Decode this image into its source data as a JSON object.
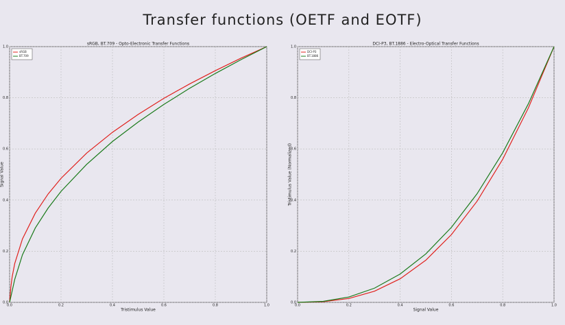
{
  "title": "Transfer functions (OETF and EOTF)",
  "chart_data": [
    {
      "type": "line",
      "title": "sRGB, BT.709 - Opto-Electronic Transfer Functions",
      "x_label": "Tristimulus Value",
      "y_label": "Signal Value",
      "x": [
        0,
        0.005,
        0.01,
        0.02,
        0.05,
        0.1,
        0.15,
        0.2,
        0.3,
        0.4,
        0.5,
        0.6,
        0.7,
        0.8,
        0.9,
        1.0
      ],
      "series": [
        {
          "name": "sRGB",
          "color": "#e0201c",
          "values": [
            0,
            0.061,
            0.1,
            0.152,
            0.248,
            0.349,
            0.424,
            0.485,
            0.584,
            0.665,
            0.735,
            0.798,
            0.854,
            0.906,
            0.955,
            1.0
          ]
        },
        {
          "name": "BT.709",
          "color": "#1a7a1a",
          "values": [
            0,
            0.0225,
            0.045,
            0.09,
            0.186,
            0.291,
            0.369,
            0.434,
            0.54,
            0.629,
            0.705,
            0.774,
            0.837,
            0.895,
            0.949,
            1.0
          ]
        }
      ],
      "xlim": [
        0,
        1
      ],
      "ylim": [
        0,
        1
      ],
      "xticks": [
        {
          "value": 0,
          "label": "0.0"
        },
        0.2,
        0.4,
        0.6,
        0.8,
        {
          "value": 1,
          "label": "1.0"
        }
      ],
      "yticks": [
        {
          "value": 0,
          "label": "0.0"
        },
        0.2,
        0.4,
        0.6,
        0.8,
        {
          "value": 1,
          "label": "1.0"
        }
      ],
      "grid": true,
      "legend": "upper left"
    },
    {
      "type": "line",
      "title": "DCI-P3, BT.1886 - Electro-Optical Transfer Functions",
      "x_label": "Signal Value",
      "y_label": "Tristimulus Value (Normalized)",
      "x": [
        0,
        0.1,
        0.2,
        0.3,
        0.4,
        0.5,
        0.6,
        0.7,
        0.8,
        0.9,
        1.0
      ],
      "series": [
        {
          "name": "DCI-P3",
          "color": "#e0201c",
          "values": [
            0,
            0.0025,
            0.0152,
            0.0437,
            0.0923,
            0.1649,
            0.265,
            0.3956,
            0.5598,
            0.7604,
            1.0
          ]
        },
        {
          "name": "BT.1886",
          "color": "#1a7a1a",
          "values": [
            0,
            0.004,
            0.021,
            0.0556,
            0.1109,
            0.1895,
            0.2935,
            0.4248,
            0.5854,
            0.7766,
            1.0
          ]
        }
      ],
      "xlim": [
        0,
        1
      ],
      "ylim": [
        0,
        1
      ],
      "xticks": [
        {
          "value": 0,
          "label": "0.0"
        },
        0.2,
        0.4,
        0.6,
        0.8,
        {
          "value": 1,
          "label": "1.0"
        }
      ],
      "yticks": [
        {
          "value": 0,
          "label": "0.0"
        },
        0.2,
        0.4,
        0.6,
        0.8,
        {
          "value": 1,
          "label": "1.0"
        }
      ],
      "grid": true,
      "legend": "upper left"
    }
  ]
}
